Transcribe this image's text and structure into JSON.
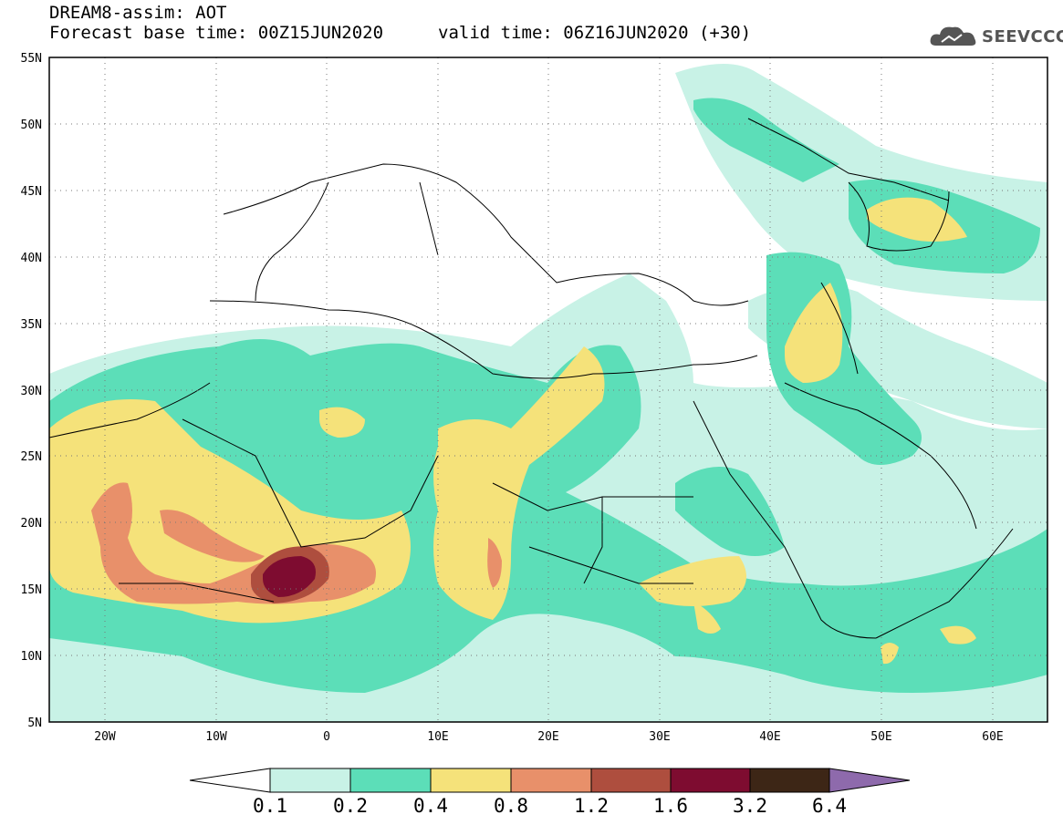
{
  "header": {
    "title": "DREAM8-assim: AOT",
    "base_time": "Forecast base time: 00Z15JUN2020",
    "valid_time": "valid time: 06Z16JUN2020 (+30)",
    "logo_text": "SEEVCCC"
  },
  "map": {
    "lat_labels": [
      "55N",
      "50N",
      "45N",
      "40N",
      "35N",
      "30N",
      "25N",
      "20N",
      "15N",
      "10N",
      "5N"
    ],
    "lon_labels": [
      "20W",
      "10W",
      "0",
      "10E",
      "20E",
      "30E",
      "40E",
      "50E",
      "60E"
    ],
    "colors": {
      "ocean_background": "#ffffff",
      "frame": "#000000",
      "grid": "#777777"
    }
  },
  "colorbar": {
    "labels": [
      "0.1",
      "0.2",
      "0.4",
      "0.8",
      "1.2",
      "1.6",
      "3.2",
      "6.4"
    ],
    "colors": [
      "#ffffff",
      "#c8f2e6",
      "#5cdeb8",
      "#f5e27a",
      "#e8906a",
      "#ae4e3e",
      "#7e0c30",
      "#3d2616",
      "#8e6aac"
    ]
  }
}
